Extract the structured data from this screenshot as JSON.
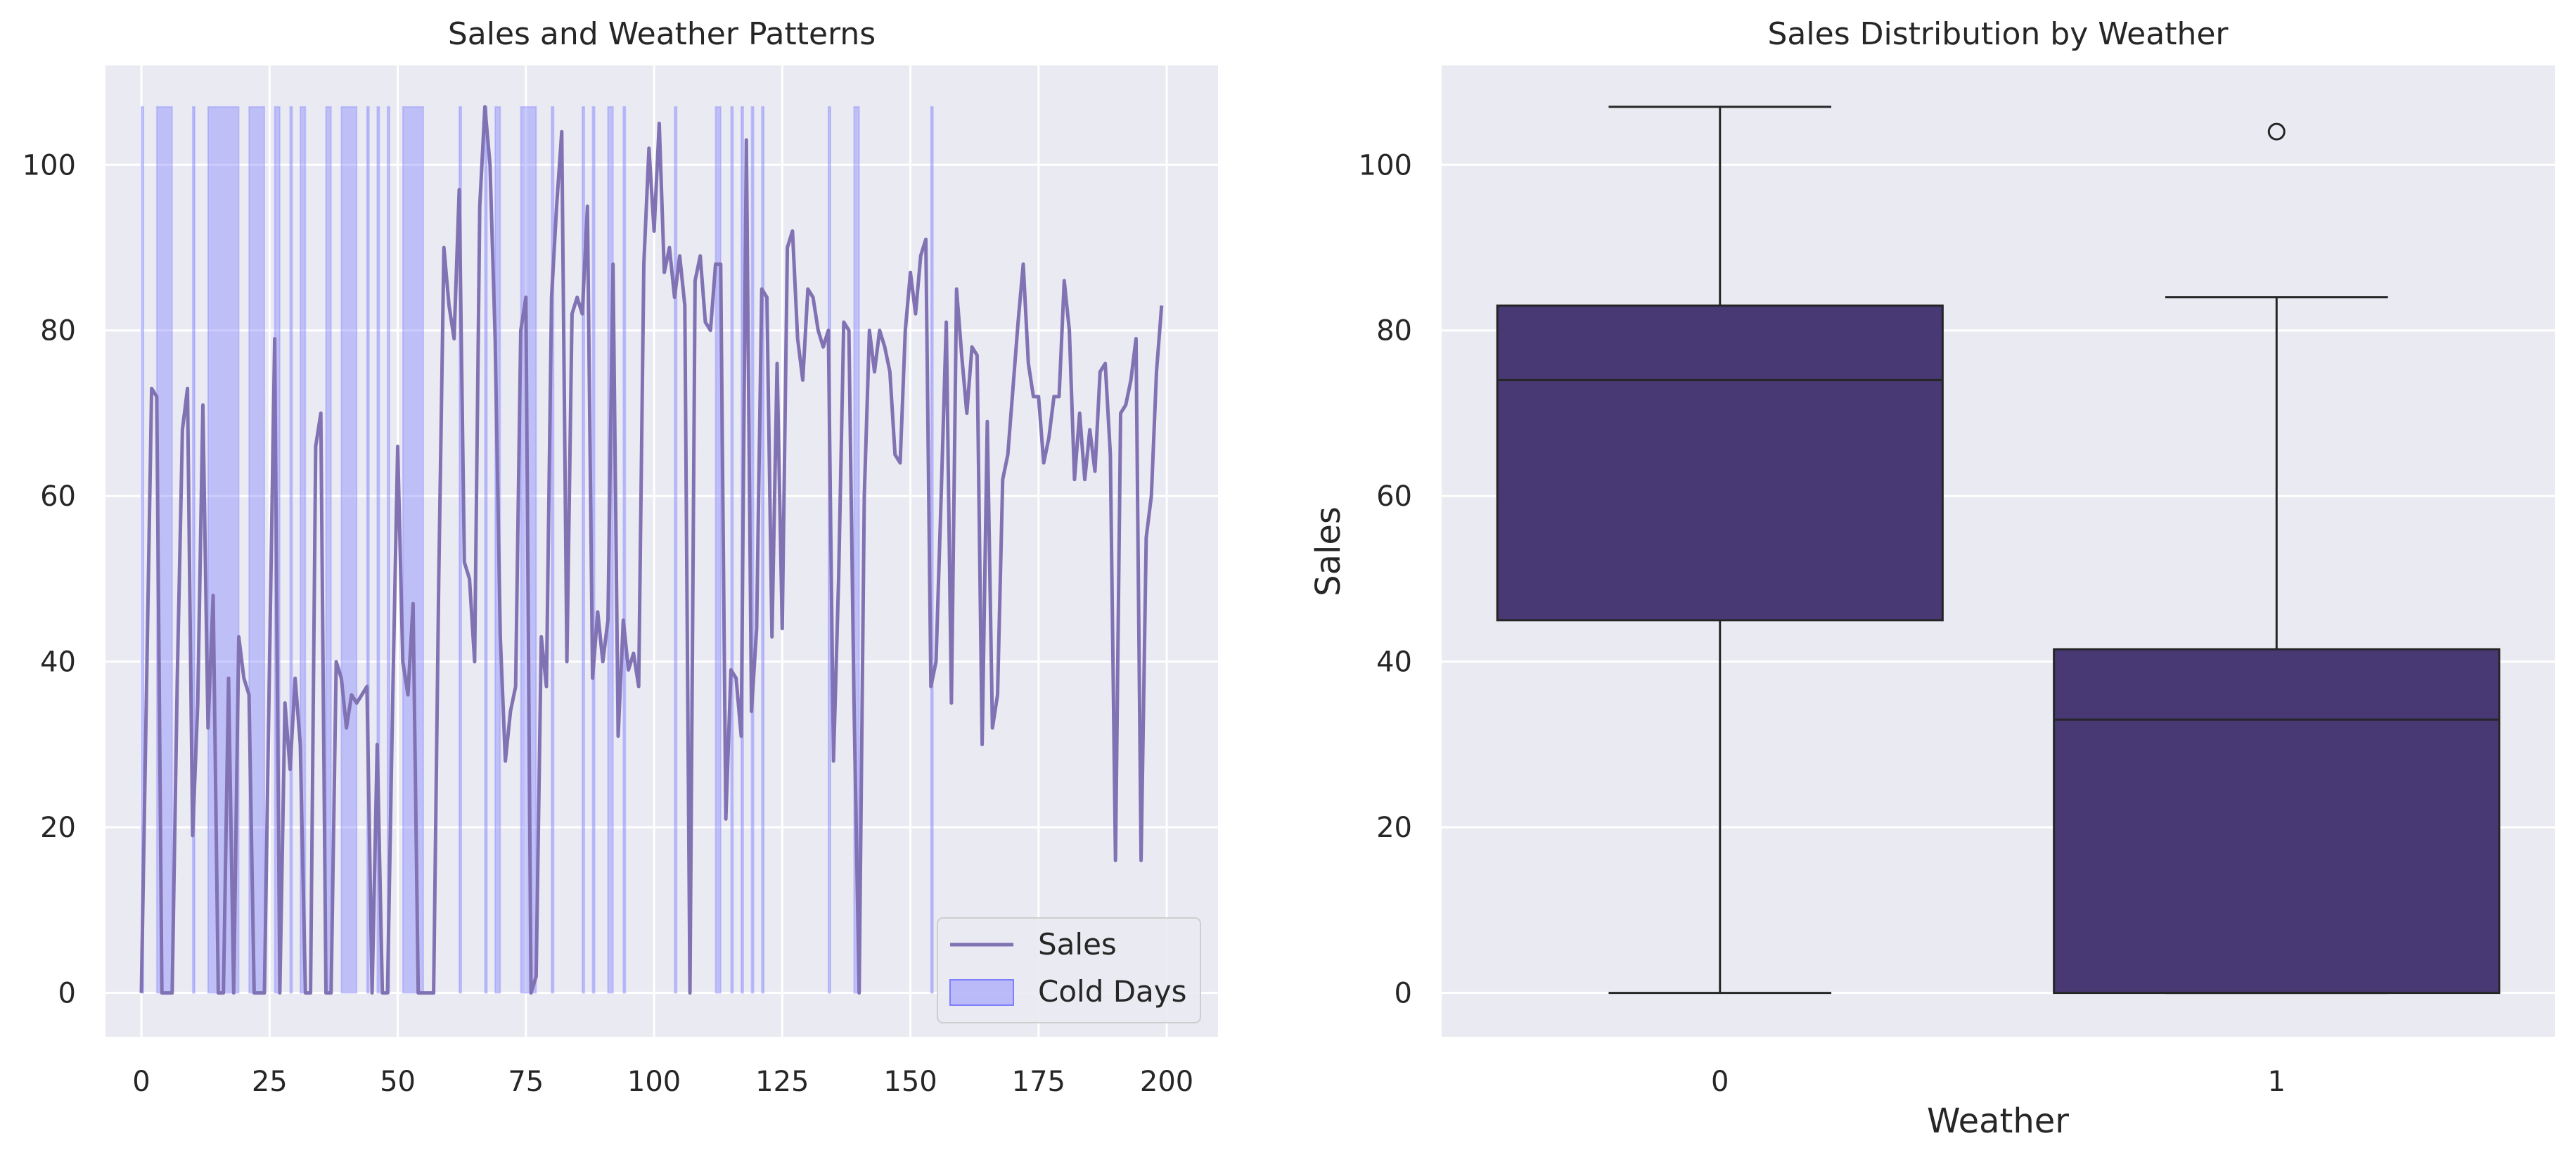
{
  "chart_data": [
    {
      "type": "line",
      "title": "Sales and Weather Patterns",
      "xlabel": "",
      "ylabel": "",
      "xlim": [
        -7,
        210
      ],
      "ylim": [
        -5.3,
        112
      ],
      "grid": true,
      "legend": {
        "position": "lower-right",
        "entries": [
          "Sales",
          "Cold Days"
        ]
      },
      "x_ticks": [
        0,
        25,
        50,
        75,
        100,
        125,
        150,
        175,
        200
      ],
      "y_ticks": [
        0,
        20,
        40,
        60,
        80,
        100
      ],
      "series": [
        {
          "name": "Sales",
          "color": "#8172b3",
          "points": [
            [
              0,
              0
            ],
            [
              2,
              73
            ],
            [
              3,
              72
            ],
            [
              4,
              0
            ],
            [
              5,
              0
            ],
            [
              6,
              0
            ],
            [
              7,
              38
            ],
            [
              8,
              68
            ],
            [
              9,
              73
            ],
            [
              10,
              19
            ],
            [
              11,
              35
            ],
            [
              12,
              71
            ],
            [
              13,
              32
            ],
            [
              14,
              48
            ],
            [
              15,
              0
            ],
            [
              16,
              0
            ],
            [
              17,
              38
            ],
            [
              18,
              0
            ],
            [
              19,
              43
            ],
            [
              20,
              38
            ],
            [
              21,
              36
            ],
            [
              22,
              0
            ],
            [
              23,
              0
            ],
            [
              24,
              0
            ],
            [
              25,
              40
            ],
            [
              26,
              79
            ],
            [
              27,
              0
            ],
            [
              28,
              35
            ],
            [
              29,
              27
            ],
            [
              30,
              38
            ],
            [
              31,
              30
            ],
            [
              32,
              0
            ],
            [
              33,
              0
            ],
            [
              34,
              66
            ],
            [
              35,
              70
            ],
            [
              36,
              0
            ],
            [
              37,
              0
            ],
            [
              38,
              40
            ],
            [
              39,
              38
            ],
            [
              40,
              32
            ],
            [
              41,
              36
            ],
            [
              42,
              35
            ],
            [
              43,
              36
            ],
            [
              44,
              37
            ],
            [
              45,
              0
            ],
            [
              46,
              30
            ],
            [
              47,
              0
            ],
            [
              48,
              0
            ],
            [
              49,
              35
            ],
            [
              50,
              66
            ],
            [
              51,
              40
            ],
            [
              52,
              36
            ],
            [
              53,
              47
            ],
            [
              54,
              0
            ],
            [
              55,
              0
            ],
            [
              56,
              0
            ],
            [
              57,
              0
            ],
            [
              58,
              50
            ],
            [
              59,
              90
            ],
            [
              60,
              83
            ],
            [
              61,
              79
            ],
            [
              62,
              97
            ],
            [
              63,
              52
            ],
            [
              64,
              50
            ],
            [
              65,
              40
            ],
            [
              66,
              95
            ],
            [
              67,
              107
            ],
            [
              68,
              100
            ],
            [
              69,
              79
            ],
            [
              70,
              43
            ],
            [
              71,
              28
            ],
            [
              72,
              34
            ],
            [
              73,
              37
            ],
            [
              74,
              80
            ],
            [
              75,
              84
            ],
            [
              76,
              0
            ],
            [
              77,
              2
            ],
            [
              78,
              43
            ],
            [
              79,
              37
            ],
            [
              80,
              84
            ],
            [
              81,
              95
            ],
            [
              82,
              104
            ],
            [
              83,
              40
            ],
            [
              84,
              82
            ],
            [
              85,
              84
            ],
            [
              86,
              82
            ],
            [
              87,
              95
            ],
            [
              88,
              38
            ],
            [
              89,
              46
            ],
            [
              90,
              40
            ],
            [
              91,
              45
            ],
            [
              92,
              88
            ],
            [
              93,
              31
            ],
            [
              94,
              45
            ],
            [
              95,
              39
            ],
            [
              96,
              41
            ],
            [
              97,
              37
            ],
            [
              98,
              88
            ],
            [
              99,
              102
            ],
            [
              100,
              92
            ],
            [
              101,
              105
            ],
            [
              102,
              87
            ],
            [
              103,
              90
            ],
            [
              104,
              84
            ],
            [
              105,
              89
            ],
            [
              106,
              83
            ],
            [
              107,
              0
            ],
            [
              108,
              86
            ],
            [
              109,
              89
            ],
            [
              110,
              81
            ],
            [
              111,
              80
            ],
            [
              112,
              88
            ],
            [
              113,
              88
            ],
            [
              114,
              21
            ],
            [
              115,
              39
            ],
            [
              116,
              38
            ],
            [
              117,
              31
            ],
            [
              118,
              103
            ],
            [
              119,
              34
            ],
            [
              120,
              44
            ],
            [
              121,
              85
            ],
            [
              122,
              84
            ],
            [
              123,
              43
            ],
            [
              124,
              76
            ],
            [
              125,
              44
            ],
            [
              126,
              90
            ],
            [
              127,
              92
            ],
            [
              128,
              79
            ],
            [
              129,
              74
            ],
            [
              130,
              85
            ],
            [
              131,
              84
            ],
            [
              132,
              80
            ],
            [
              133,
              78
            ],
            [
              134,
              80
            ],
            [
              135,
              28
            ],
            [
              136,
              50
            ],
            [
              137,
              81
            ],
            [
              138,
              80
            ],
            [
              139,
              35
            ],
            [
              140,
              0
            ],
            [
              141,
              60
            ],
            [
              142,
              80
            ],
            [
              143,
              75
            ],
            [
              144,
              80
            ],
            [
              145,
              78
            ],
            [
              146,
              75
            ],
            [
              147,
              65
            ],
            [
              148,
              64
            ],
            [
              149,
              80
            ],
            [
              150,
              87
            ],
            [
              151,
              82
            ],
            [
              152,
              89
            ],
            [
              153,
              91
            ],
            [
              154,
              37
            ],
            [
              155,
              40
            ],
            [
              156,
              60
            ],
            [
              157,
              81
            ],
            [
              158,
              35
            ],
            [
              159,
              85
            ],
            [
              160,
              77
            ],
            [
              161,
              70
            ],
            [
              162,
              78
            ],
            [
              163,
              77
            ],
            [
              164,
              30
            ],
            [
              165,
              69
            ],
            [
              166,
              32
            ],
            [
              167,
              36
            ],
            [
              168,
              62
            ],
            [
              169,
              65
            ],
            [
              170,
              73
            ],
            [
              171,
              81
            ],
            [
              172,
              88
            ],
            [
              173,
              76
            ],
            [
              174,
              72
            ],
            [
              175,
              72
            ],
            [
              176,
              64
            ],
            [
              177,
              67
            ],
            [
              178,
              72
            ],
            [
              179,
              72
            ],
            [
              180,
              86
            ],
            [
              181,
              80
            ],
            [
              182,
              62
            ],
            [
              183,
              70
            ],
            [
              184,
              62
            ],
            [
              185,
              68
            ],
            [
              186,
              63
            ],
            [
              187,
              75
            ],
            [
              188,
              76
            ],
            [
              189,
              65
            ],
            [
              190,
              16
            ],
            [
              191,
              70
            ],
            [
              192,
              71
            ],
            [
              193,
              74
            ],
            [
              194,
              79
            ],
            [
              195,
              16
            ],
            [
              196,
              55
            ],
            [
              197,
              60
            ],
            [
              198,
              75
            ],
            [
              199,
              83
            ]
          ]
        }
      ],
      "shaded": {
        "name": "Cold Days",
        "color": "#8080ff",
        "ymax": 107,
        "intervals": [
          [
            0,
            0
          ],
          [
            3,
            6
          ],
          [
            10,
            10
          ],
          [
            13,
            19
          ],
          [
            21,
            24
          ],
          [
            26,
            27
          ],
          [
            29,
            29
          ],
          [
            31,
            32
          ],
          [
            36,
            37
          ],
          [
            39,
            42
          ],
          [
            44,
            44
          ],
          [
            46,
            46
          ],
          [
            48,
            48
          ],
          [
            51,
            55
          ],
          [
            62,
            62
          ],
          [
            67,
            67
          ],
          [
            69,
            70
          ],
          [
            74,
            77
          ],
          [
            80,
            80
          ],
          [
            86,
            86
          ],
          [
            88,
            88
          ],
          [
            91,
            92
          ],
          [
            94,
            94
          ],
          [
            104,
            104
          ],
          [
            112,
            113
          ],
          [
            115,
            115
          ],
          [
            117,
            117
          ],
          [
            119,
            119
          ],
          [
            121,
            121
          ],
          [
            134,
            134
          ],
          [
            139,
            140
          ],
          [
            154,
            154
          ]
        ]
      }
    },
    {
      "type": "box",
      "title": "Sales Distribution by Weather",
      "xlabel": "Weather",
      "ylabel": "Sales",
      "ylim": [
        -5.3,
        112
      ],
      "grid": true,
      "categories": [
        "0",
        "1"
      ],
      "y_ticks": [
        0,
        20,
        40,
        60,
        80,
        100
      ],
      "color": "#483873",
      "boxes": [
        {
          "category": "0",
          "whisker_low": 0,
          "q1": 45,
          "median": 74,
          "q3": 83,
          "whisker_high": 107,
          "outliers": []
        },
        {
          "category": "1",
          "whisker_low": 0,
          "q1": 0,
          "median": 33,
          "q3": 41.5,
          "whisker_high": 84,
          "outliers": [
            104
          ]
        }
      ]
    }
  ]
}
